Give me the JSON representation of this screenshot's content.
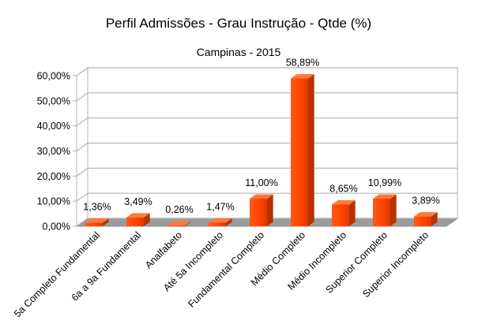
{
  "chart_data": {
    "type": "bar",
    "title": "Perfil Admissões - Grau Instrução - Qtde (%)",
    "subtitle": "Campinas  - 2015",
    "categories": [
      "5a Completo Fundamental",
      "6a a 9a Fundamental",
      "Analfabeto",
      "Até 5a Incompleto",
      "Fundamental Completo",
      "Médio Completo",
      "Médio Incompleto",
      "Superior Completo",
      "Superior Incompleto"
    ],
    "values": [
      1.36,
      3.49,
      0.26,
      1.47,
      11.0,
      58.89,
      8.65,
      10.99,
      3.89
    ],
    "value_labels": [
      "1,36%",
      "3,49%",
      "0,26%",
      "1,47%",
      "11,00%",
      "58,89%",
      "8,65%",
      "10,99%",
      "3,89%"
    ],
    "y_ticks": [
      0,
      10,
      20,
      30,
      40,
      50,
      60
    ],
    "y_tick_labels": [
      "0,00%",
      "10,00%",
      "20,00%",
      "30,00%",
      "40,00%",
      "50,00%",
      "60,00%"
    ],
    "ylim": [
      0,
      60
    ],
    "grid": true,
    "legend": "none",
    "bar_color": "#ff4400",
    "style": "3d"
  }
}
